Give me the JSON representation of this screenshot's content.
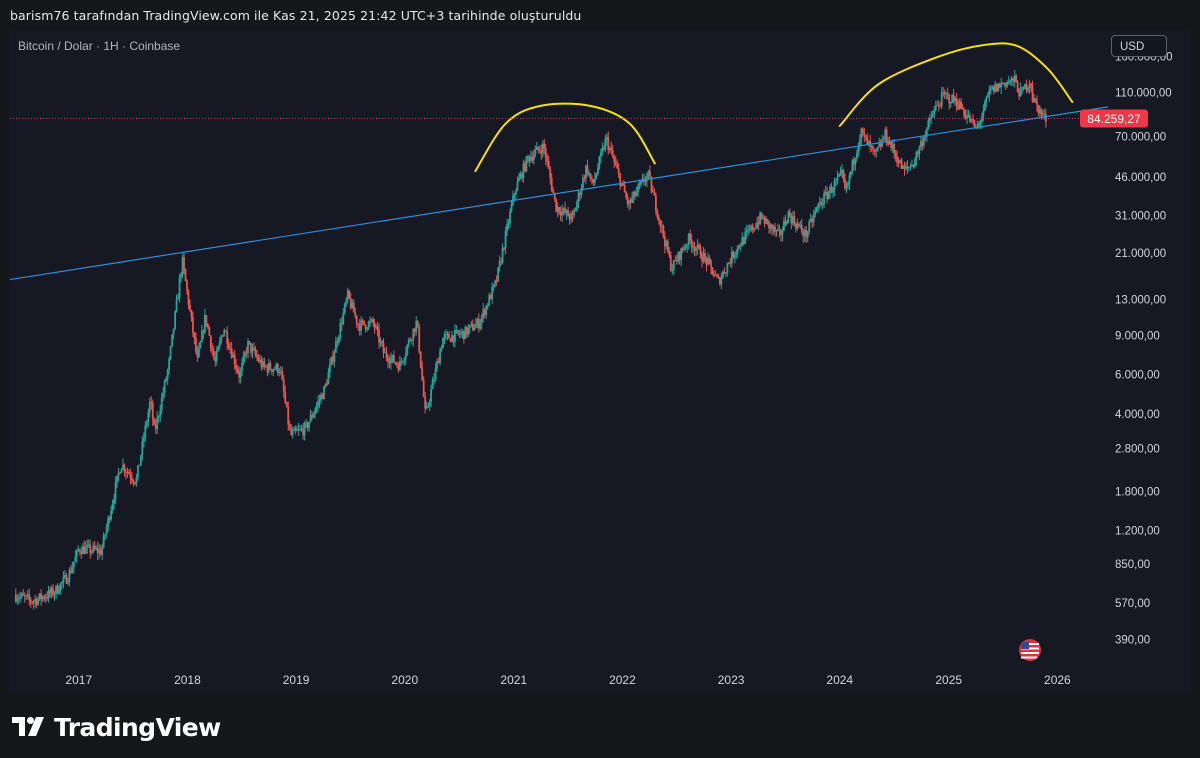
{
  "caption": "barism76 tarafından TradingView.com ile Kas 21, 2025 21:42 UTC+3 tarihinde oluşturuldu",
  "symbol_legend": "Bitcoin / Dolar · 1H · Coinbase",
  "currency": "USD",
  "brand": "TradingView",
  "colors": {
    "background": "#161923",
    "up": "#26a69a",
    "down": "#ef5350",
    "trendline": "#2f8ed8",
    "annotation": "#f5e10f",
    "price_label": "#f23645"
  },
  "chart_data": {
    "type": "candlestick",
    "y_scale": "log",
    "ylim": [
      300,
      210000
    ],
    "xlim": [
      "2016-05-15",
      "2026-06-20"
    ],
    "y_ticks": [
      {
        "value": 160000,
        "label": "160.000,00"
      },
      {
        "value": 110000,
        "label": "110.000,00"
      },
      {
        "value": 70000,
        "label": "70.000,00"
      },
      {
        "value": 46000,
        "label": "46.000,00"
      },
      {
        "value": 31000,
        "label": "31.000,00"
      },
      {
        "value": 21000,
        "label": "21.000,00"
      },
      {
        "value": 13000,
        "label": "13.000,00"
      },
      {
        "value": 9000,
        "label": "9.000,00"
      },
      {
        "value": 6000,
        "label": "6.000,00"
      },
      {
        "value": 4000,
        "label": "4.000,00"
      },
      {
        "value": 2800,
        "label": "2.800,00"
      },
      {
        "value": 1800,
        "label": "1.800,00"
      },
      {
        "value": 1200,
        "label": "1.200,00"
      },
      {
        "value": 850,
        "label": "850,00"
      },
      {
        "value": 570,
        "label": "570,00"
      },
      {
        "value": 390,
        "label": "390,00"
      }
    ],
    "x_ticks": [
      {
        "date": "2017-01-01",
        "label": "2017"
      },
      {
        "date": "2018-01-01",
        "label": "2018"
      },
      {
        "date": "2019-01-01",
        "label": "2019"
      },
      {
        "date": "2020-01-01",
        "label": "2020"
      },
      {
        "date": "2021-01-01",
        "label": "2021"
      },
      {
        "date": "2022-01-01",
        "label": "2022"
      },
      {
        "date": "2023-01-01",
        "label": "2023"
      },
      {
        "date": "2024-01-01",
        "label": "2024"
      },
      {
        "date": "2025-01-01",
        "label": "2025"
      },
      {
        "date": "2026-01-01",
        "label": "2026"
      }
    ],
    "last_price": {
      "value": 84259.27,
      "label": "84.259,27"
    },
    "price_path": [
      [
        "2016-06-01",
        620
      ],
      [
        "2016-08-01",
        580
      ],
      [
        "2016-10-15",
        640
      ],
      [
        "2016-12-01",
        760
      ],
      [
        "2017-01-05",
        1000
      ],
      [
        "2017-03-20",
        970
      ],
      [
        "2017-05-25",
        2400
      ],
      [
        "2017-07-15",
        2000
      ],
      [
        "2017-09-01",
        4600
      ],
      [
        "2017-09-15",
        3300
      ],
      [
        "2017-11-01",
        6500
      ],
      [
        "2017-12-17",
        19500
      ],
      [
        "2018-02-06",
        6900
      ],
      [
        "2018-03-05",
        11000
      ],
      [
        "2018-04-06",
        6700
      ],
      [
        "2018-05-05",
        9800
      ],
      [
        "2018-06-28",
        5900
      ],
      [
        "2018-07-25",
        8200
      ],
      [
        "2018-09-15",
        6500
      ],
      [
        "2018-11-10",
        6400
      ],
      [
        "2018-12-15",
        3200
      ],
      [
        "2019-02-05",
        3450
      ],
      [
        "2019-04-10",
        5200
      ],
      [
        "2019-06-26",
        13500
      ],
      [
        "2019-08-01",
        10000
      ],
      [
        "2019-09-20",
        10200
      ],
      [
        "2019-10-25",
        7500
      ],
      [
        "2019-12-17",
        6600
      ],
      [
        "2020-02-13",
        10400
      ],
      [
        "2020-03-13",
        3900
      ],
      [
        "2020-05-10",
        8700
      ],
      [
        "2020-07-20",
        9200
      ],
      [
        "2020-09-10",
        10300
      ],
      [
        "2020-11-05",
        15500
      ],
      [
        "2021-01-08",
        40500
      ],
      [
        "2021-02-20",
        56000
      ],
      [
        "2021-04-14",
        63500
      ],
      [
        "2021-05-25",
        34000
      ],
      [
        "2021-07-20",
        30000
      ],
      [
        "2021-09-05",
        51500
      ],
      [
        "2021-09-25",
        42000
      ],
      [
        "2021-11-10",
        68500
      ],
      [
        "2022-01-24",
        34500
      ],
      [
        "2022-03-30",
        47500
      ],
      [
        "2022-05-10",
        29000
      ],
      [
        "2022-06-18",
        18000
      ],
      [
        "2022-08-15",
        24400
      ],
      [
        "2022-10-15",
        19200
      ],
      [
        "2022-11-21",
        15600
      ],
      [
        "2023-01-20",
        22000
      ],
      [
        "2023-04-14",
        30400
      ],
      [
        "2023-06-15",
        25000
      ],
      [
        "2023-07-14",
        31500
      ],
      [
        "2023-09-11",
        25200
      ],
      [
        "2023-10-24",
        34500
      ],
      [
        "2024-01-11",
        47000
      ],
      [
        "2024-01-23",
        39000
      ],
      [
        "2024-03-14",
        73500
      ],
      [
        "2024-05-01",
        57000
      ],
      [
        "2024-06-05",
        71500
      ],
      [
        "2024-08-05",
        49000
      ],
      [
        "2024-09-06",
        53000
      ],
      [
        "2024-11-12",
        89000
      ],
      [
        "2024-12-17",
        107000
      ],
      [
        "2025-02-01",
        100000
      ],
      [
        "2025-04-08",
        75000
      ],
      [
        "2025-05-22",
        111500
      ],
      [
        "2025-07-14",
        123000
      ],
      [
        "2025-08-14",
        124400
      ],
      [
        "2025-09-01",
        108000
      ],
      [
        "2025-10-06",
        126000
      ],
      [
        "2025-10-11",
        104000
      ],
      [
        "2025-11-21",
        84259
      ]
    ],
    "trendline": [
      [
        "2016-05-15",
        16000
      ],
      [
        "2026-06-20",
        95000
      ]
    ],
    "hand_drawn_arcs": [
      [
        [
          "2020-08-25",
          49000
        ],
        [
          "2020-12-05",
          80000
        ],
        [
          "2021-04-01",
          96000
        ],
        [
          "2021-09-15",
          96000
        ],
        [
          "2022-01-25",
          80000
        ],
        [
          "2022-04-20",
          53000
        ]
      ],
      [
        [
          "2024-01-01",
          78000
        ],
        [
          "2024-05-10",
          120000
        ],
        [
          "2024-12-01",
          160000
        ],
        [
          "2025-05-01",
          180000
        ],
        [
          "2025-08-20",
          178000
        ],
        [
          "2025-12-01",
          140000
        ],
        [
          "2026-02-20",
          100000
        ]
      ]
    ]
  }
}
